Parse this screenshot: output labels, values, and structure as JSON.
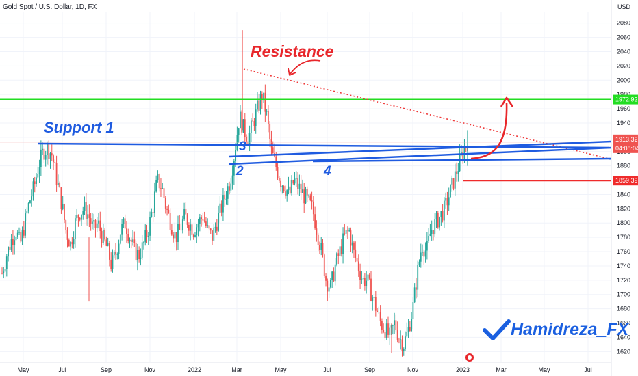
{
  "header": {
    "title": "Gold Spot / U.S. Dollar, 1D, FX",
    "currency": "USD"
  },
  "annotations": {
    "resistance": "Resistance",
    "support1": "Support 1",
    "n2": "2",
    "n3": "3",
    "n4": "4",
    "watermark": "Hamidreza_FX"
  },
  "price_labels": {
    "green": "1972.92",
    "current": "1913.32",
    "countdown": "04:08:04",
    "red": "1859.39"
  },
  "colors": {
    "up": "#26a69a",
    "down": "#ef5350",
    "trend_blue": "#1f5be0",
    "green_line": "#22dd22",
    "red_line": "#ef2b2b",
    "resistance_dots": "#ef3a3a",
    "watermark": "#1a5fe0"
  },
  "chart_data": {
    "type": "candlestick",
    "title": "Gold Spot / U.S. Dollar, 1D, FX",
    "ylabel": "USD",
    "y_ticks": [
      1620,
      1640,
      1660,
      1680,
      1700,
      1720,
      1740,
      1760,
      1780,
      1800,
      1820,
      1840,
      1860,
      1880,
      1900,
      1920,
      1940,
      1960,
      1980,
      2000,
      2020,
      2040,
      2060,
      2080
    ],
    "x_ticks": [
      "May",
      "Jul",
      "Sep",
      "Nov",
      "2022",
      "Mar",
      "May",
      "Jul",
      "Sep",
      "Nov",
      "2023",
      "Mar",
      "May",
      "Jul"
    ],
    "ylim": [
      1605,
      2095
    ],
    "price_path_weekly_close": [
      1730,
      1755,
      1775,
      1790,
      1770,
      1800,
      1830,
      1850,
      1880,
      1900,
      1905,
      1895,
      1860,
      1830,
      1790,
      1770,
      1800,
      1815,
      1820,
      1810,
      1790,
      1800,
      1780,
      1765,
      1740,
      1760,
      1790,
      1800,
      1780,
      1760,
      1755,
      1770,
      1790,
      1820,
      1860,
      1850,
      1820,
      1800,
      1780,
      1790,
      1810,
      1800,
      1790,
      1800,
      1810,
      1790,
      1780,
      1800,
      1820,
      1840,
      1860,
      1900,
      1950,
      1930,
      1920,
      1940,
      1960,
      1980,
      1950,
      1900,
      1880,
      1860,
      1850,
      1840,
      1860,
      1850,
      1840,
      1830,
      1820,
      1790,
      1760,
      1720,
      1710,
      1740,
      1760,
      1780,
      1790,
      1760,
      1740,
      1720,
      1720,
      1700,
      1680,
      1660,
      1650,
      1640,
      1660,
      1640,
      1630,
      1650,
      1680,
      1730,
      1770,
      1760,
      1790,
      1800,
      1810,
      1820,
      1840,
      1860,
      1880,
      1900,
      1913.32
    ],
    "notable_levels": {
      "horizontal_resistance": 1972.92,
      "horizontal_support": 1859.39,
      "current_price": 1913.32
    }
  }
}
